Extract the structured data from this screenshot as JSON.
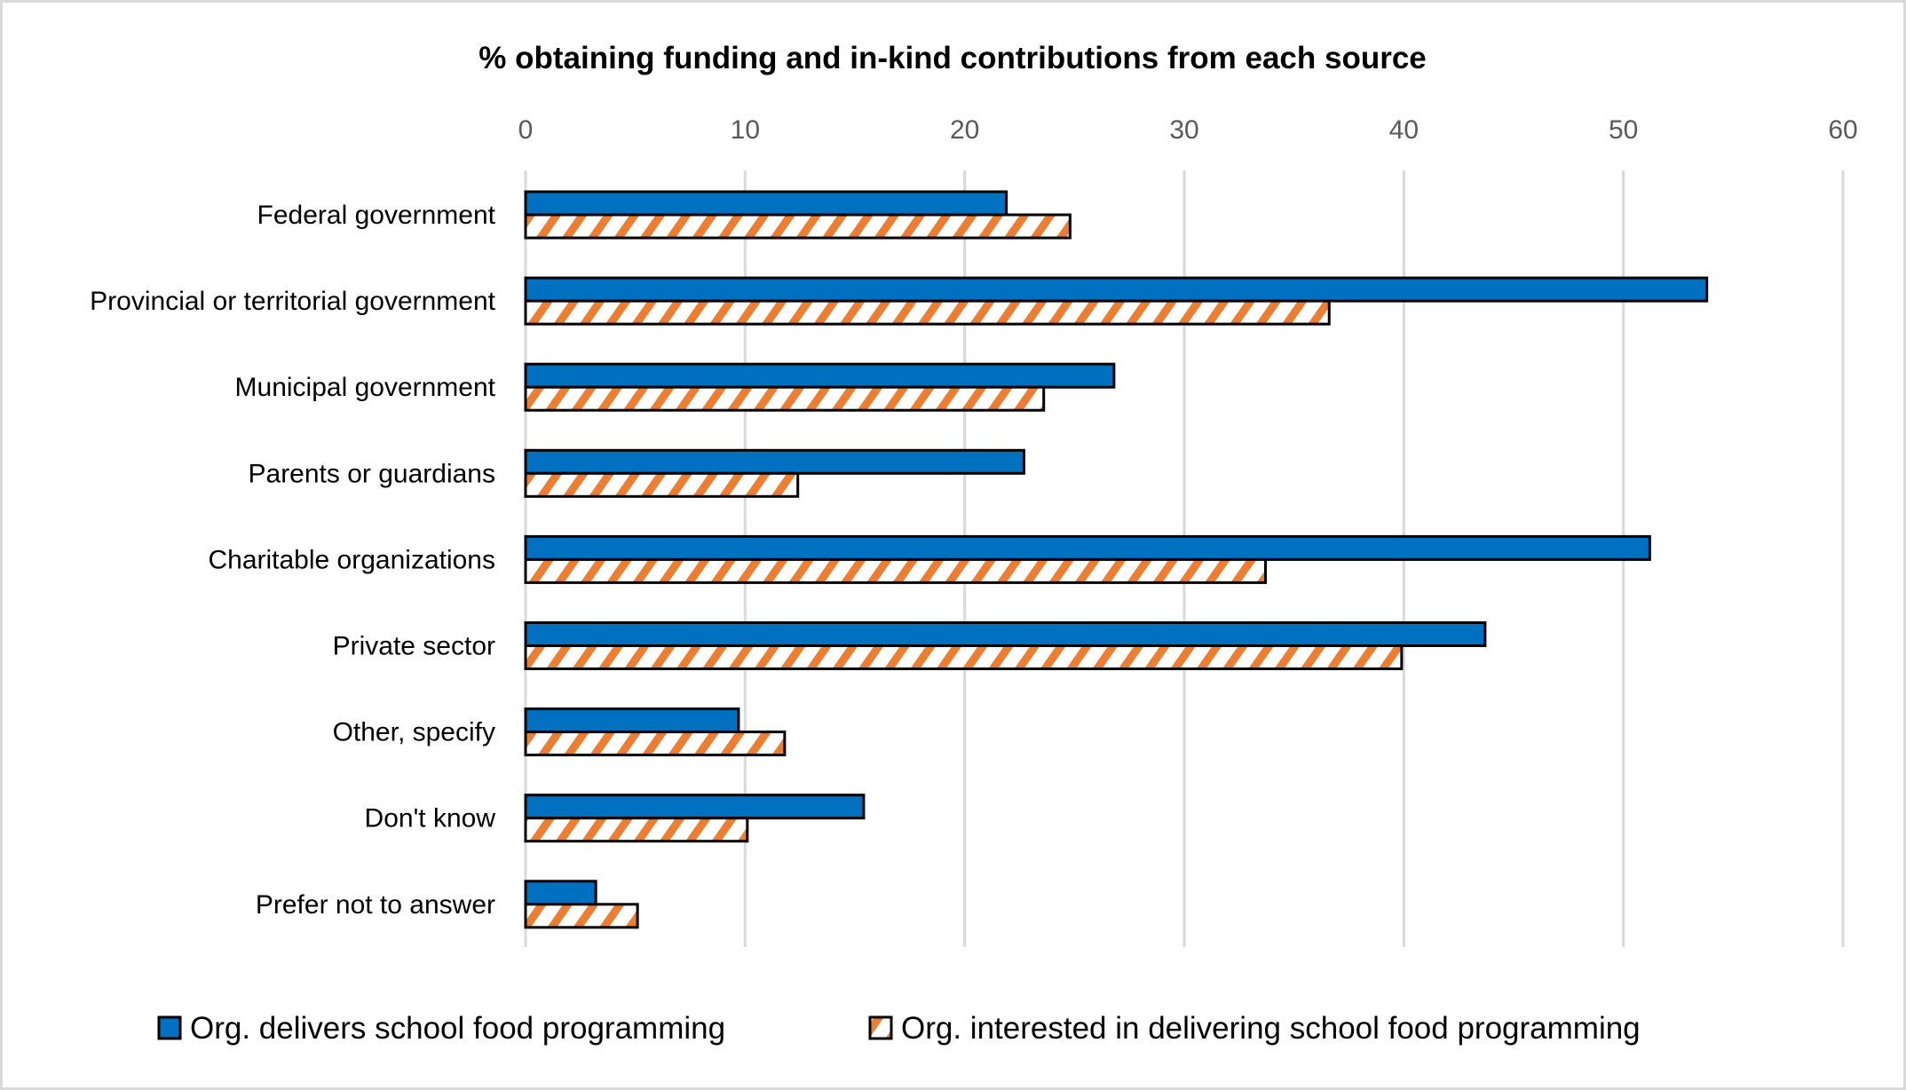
{
  "chart_data": {
    "type": "bar",
    "orientation": "horizontal",
    "title": "% obtaining funding and in-kind contributions from each source",
    "xlabel": "",
    "ylabel": "",
    "xlim": [
      0,
      60
    ],
    "x_ticks": [
      0,
      10,
      20,
      30,
      40,
      50,
      60
    ],
    "grid": true,
    "axis_position": "top",
    "legend_position": "bottom",
    "categories": [
      "Federal government",
      "Provincial or territorial government",
      "Municipal government",
      "Parents or guardians",
      "Charitable organizations",
      "Private sector",
      "Other, specify",
      "Don't know",
      "Prefer not to answer"
    ],
    "series": [
      {
        "name": "Org. delivers school food programming",
        "color": "#0070c0",
        "pattern": "solid",
        "values": [
          21.9,
          53.8,
          26.8,
          22.7,
          51.2,
          43.7,
          9.7,
          15.4,
          3.2
        ]
      },
      {
        "name": "Org. interested in delivering school food programming",
        "color": "#ed7d31",
        "pattern": "diagonal-stripes",
        "values": [
          24.8,
          36.6,
          23.6,
          12.4,
          33.7,
          39.9,
          11.8,
          10.1,
          5.1
        ]
      }
    ]
  }
}
